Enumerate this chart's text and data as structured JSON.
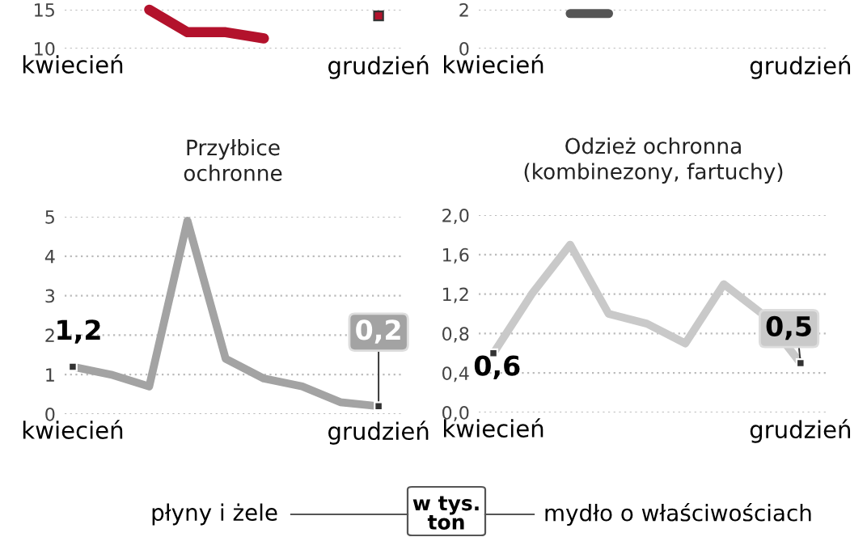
{
  "chart_data": [
    {
      "type": "line",
      "categories": [
        "kwiecień",
        null,
        null,
        null,
        null,
        null,
        null,
        null,
        "grudzień"
      ],
      "series": [
        {
          "color": "#b3122c",
          "values": [
            null,
            null,
            15,
            12.1,
            12.1,
            11.3,
            null,
            null,
            14.2
          ]
        }
      ],
      "ylim": [
        10,
        15
      ],
      "yticks": [
        10,
        15
      ],
      "grid": "y"
    },
    {
      "type": "line",
      "categories": [
        "kwiecień",
        null,
        null,
        null,
        null,
        null,
        null,
        null,
        "grudzień"
      ],
      "series": [
        {
          "color": "#555555",
          "values": [
            null,
            null,
            1.8,
            1.8,
            null,
            null,
            null,
            null,
            null
          ]
        }
      ],
      "ylim": [
        0,
        2
      ],
      "yticks": [
        0,
        2
      ],
      "grid": "y"
    },
    {
      "type": "line",
      "title": "Przyłbice\nochronne",
      "categories": [
        "kwiecień",
        null,
        null,
        null,
        null,
        null,
        null,
        null,
        "grudzień"
      ],
      "series": [
        {
          "color": "#a3a3a3",
          "values": [
            1.2,
            1.0,
            0.7,
            4.9,
            1.4,
            0.9,
            0.7,
            0.3,
            0.2
          ],
          "value_labels": [
            "1,2",
            null,
            null,
            null,
            null,
            null,
            null,
            null,
            "0,2"
          ]
        }
      ],
      "ylim": [
        0,
        5
      ],
      "yticks": [
        0,
        1,
        2,
        3,
        4,
        5
      ],
      "grid": "y"
    },
    {
      "type": "line",
      "title": "Odzież ochronna\n(kombinezony, fartuchy)",
      "categories": [
        "kwiecień",
        null,
        null,
        null,
        null,
        null,
        null,
        null,
        "grudzień"
      ],
      "series": [
        {
          "color": "#c9c9c9",
          "values": [
            0.6,
            1.2,
            1.7,
            1.0,
            0.9,
            0.7,
            1.3,
            1.0,
            0.5
          ],
          "value_labels": [
            "0,6",
            null,
            null,
            null,
            null,
            null,
            null,
            null,
            "0,5"
          ]
        }
      ],
      "ylim": [
        0,
        2.0
      ],
      "yticks": [
        {
          "value": 0,
          "label": "0,0"
        },
        {
          "value": 0.4,
          "label": "0,4"
        },
        {
          "value": 0.8,
          "label": "0,8"
        },
        {
          "value": 1.2,
          "label": "1,2"
        },
        {
          "value": 1.6,
          "label": "1,6"
        },
        {
          "value": 2.0,
          "label": "2,0"
        }
      ],
      "grid": "y"
    },
    {
      "type": "other",
      "annotations": [
        "płyny i żele",
        "w tys.\nton",
        "mydło o właściwościach"
      ]
    }
  ]
}
